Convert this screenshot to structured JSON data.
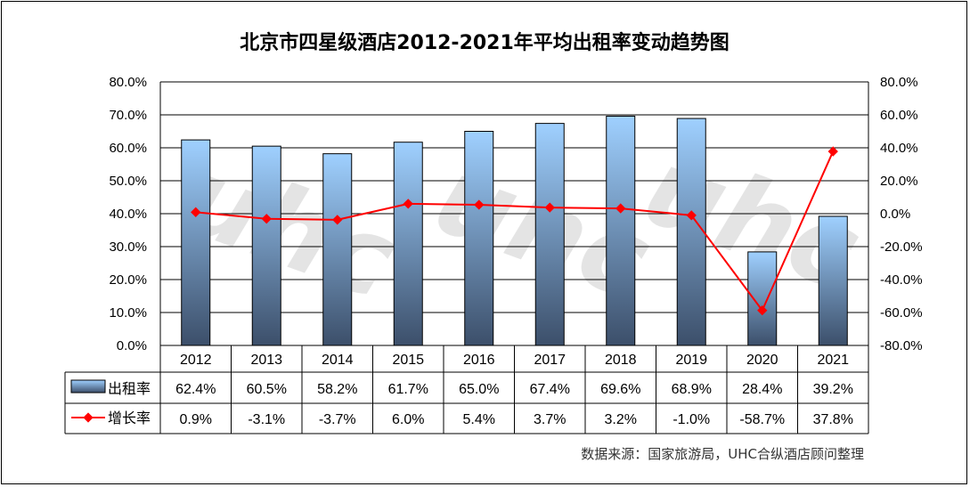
{
  "chart_data": {
    "type": "bar",
    "title": "北京市四星级酒店2012-2021年平均出租率变动趋势图",
    "categories": [
      "2012",
      "2013",
      "2014",
      "2015",
      "2016",
      "2017",
      "2018",
      "2019",
      "2020",
      "2021"
    ],
    "series": [
      {
        "name": "出租率",
        "type": "bar",
        "axis": "left",
        "values": [
          62.4,
          60.5,
          58.2,
          61.7,
          65.0,
          67.4,
          69.6,
          68.9,
          28.4,
          39.2
        ],
        "labels": [
          "62.4%",
          "60.5%",
          "58.2%",
          "61.7%",
          "65.0%",
          "67.4%",
          "69.6%",
          "68.9%",
          "28.4%",
          "39.2%"
        ]
      },
      {
        "name": "增长率",
        "type": "line",
        "axis": "right",
        "color": "#ff0000",
        "values": [
          0.9,
          -3.1,
          -3.7,
          6.0,
          5.4,
          3.7,
          3.2,
          -1.0,
          -58.7,
          37.8
        ],
        "labels": [
          "0.9%",
          "-3.1%",
          "-3.7%",
          "6.0%",
          "5.4%",
          "3.7%",
          "3.2%",
          "-1.0%",
          "-58.7%",
          "37.8%"
        ]
      }
    ],
    "left_axis": {
      "ylim": [
        0,
        80
      ],
      "ticks": [
        "0.0%",
        "10.0%",
        "20.0%",
        "30.0%",
        "40.0%",
        "50.0%",
        "60.0%",
        "70.0%",
        "80.0%"
      ]
    },
    "right_axis": {
      "ylim": [
        -80,
        80
      ],
      "ticks": [
        "-80.0%",
        "-60.0%",
        "-40.0%",
        "-20.0%",
        "0.0%",
        "20.0%",
        "40.0%",
        "60.0%",
        "80.0%"
      ]
    },
    "grid": true,
    "legend": "data-table",
    "bar_gradient": [
      "#9fd0ff",
      "#3c4f6a"
    ]
  },
  "source_note": "数据来源：国家旅游局，UHC合纵酒店顾问整理",
  "watermark": {
    "logo_text": "uhc",
    "cn_text": "合纵酒店顾问",
    "en_text": "UNITED CONSULTANCY"
  }
}
